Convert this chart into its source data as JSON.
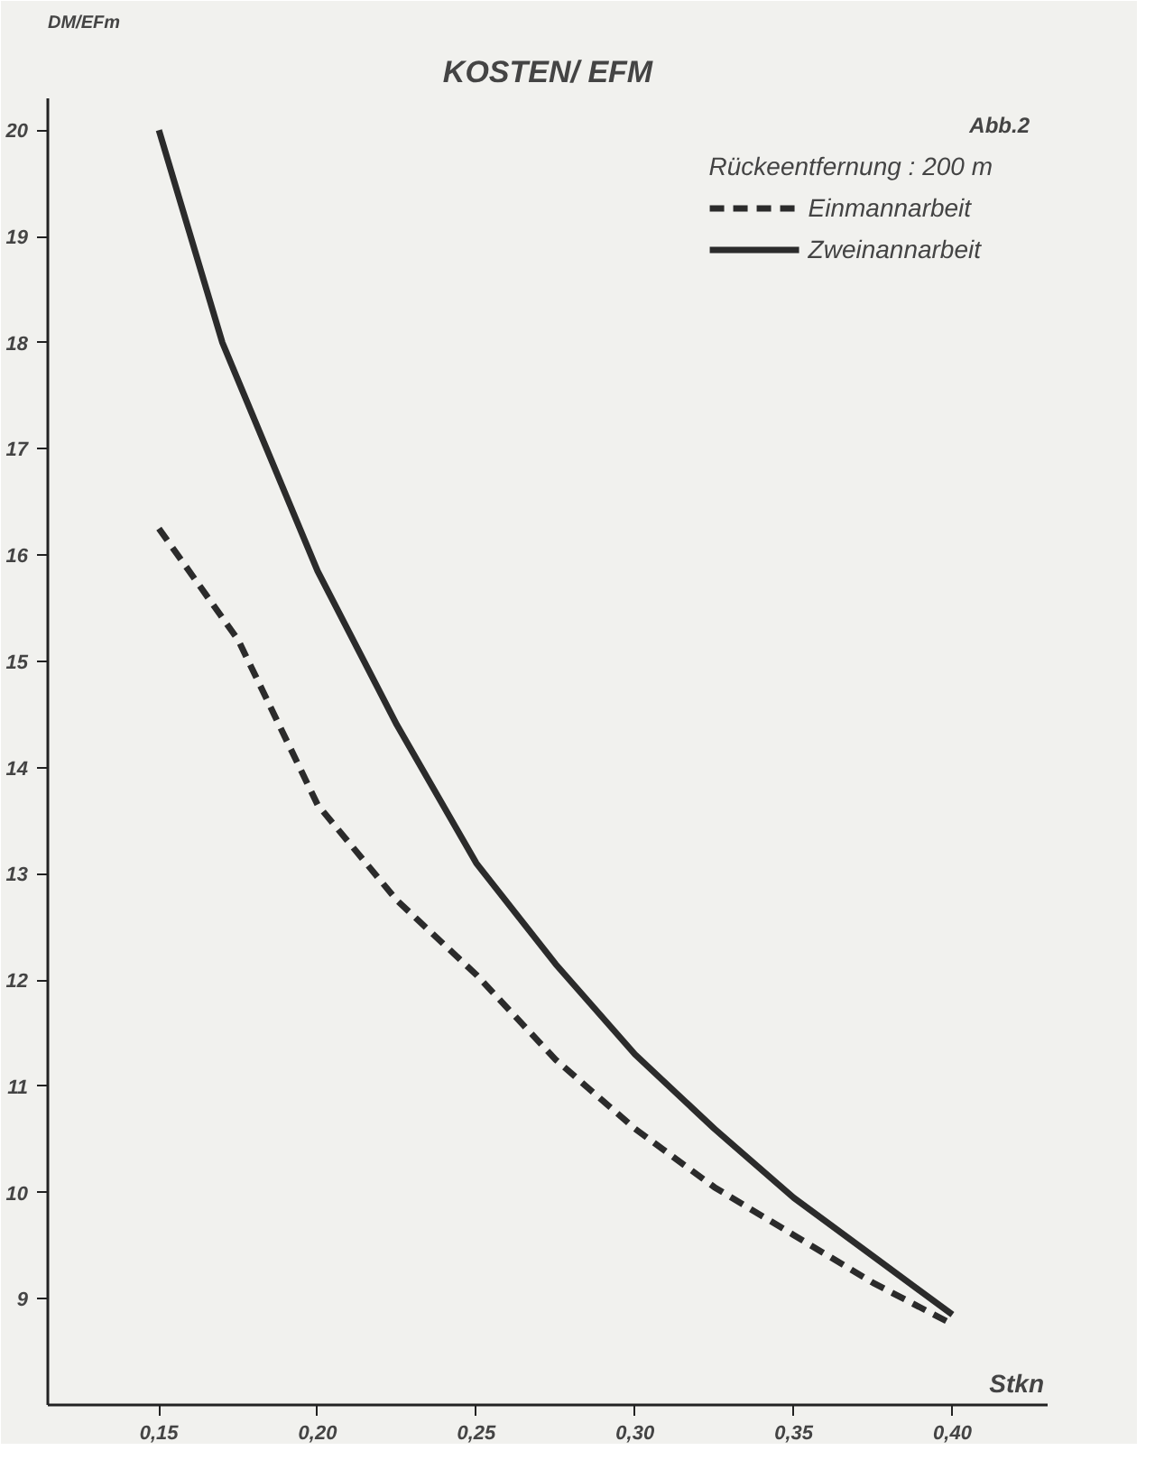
{
  "chart_data": {
    "type": "line",
    "title": "KOSTEN/ EFM",
    "ylabel": "DM/EFm",
    "xlabel": "Stkn",
    "legend_title": "Rückeentfernung : 200 m",
    "annotations": [
      "Abb.2"
    ],
    "x": [
      0.15,
      0.17,
      0.2,
      0.225,
      0.25,
      0.275,
      0.3,
      0.325,
      0.35,
      0.375,
      0.4
    ],
    "series": [
      {
        "name": "Einmannarbeit",
        "color": "#2b2b2b",
        "line_style": "dashed",
        "x": [
          0.15,
          0.175,
          0.2,
          0.225,
          0.25,
          0.275,
          0.3,
          0.325,
          0.35,
          0.375,
          0.4
        ],
        "values": [
          16.25,
          15.2,
          13.65,
          12.75,
          12.05,
          11.25,
          10.6,
          10.05,
          9.6,
          9.15,
          8.76
        ]
      },
      {
        "name": "Zweinannarbeit",
        "color": "#2b2b2b",
        "line_style": "solid",
        "values": [
          20.0,
          18.0,
          15.85,
          14.4,
          13.1,
          12.15,
          11.3,
          10.6,
          9.95,
          9.4,
          8.85
        ]
      }
    ],
    "xlim": [
      0.115,
      0.43
    ],
    "ylim": [
      8.0,
      20.3
    ],
    "xticks": [
      {
        "value": 0.15,
        "label": "0,15"
      },
      {
        "value": 0.2,
        "label": "0,20"
      },
      {
        "value": 0.25,
        "label": "0,25"
      },
      {
        "value": 0.3,
        "label": "0,30"
      },
      {
        "value": 0.35,
        "label": "0,35"
      },
      {
        "value": 0.4,
        "label": "0,40"
      }
    ],
    "yticks": [
      9,
      10,
      11,
      12,
      13,
      14,
      15,
      16,
      17,
      18,
      19,
      20
    ],
    "grid": false,
    "legend": "top right",
    "marker": "none"
  }
}
